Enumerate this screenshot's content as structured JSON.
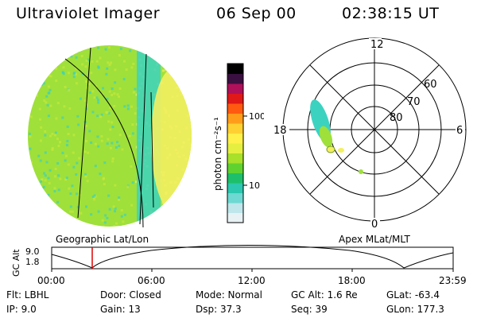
{
  "header": {
    "title": "Ultraviolet Imager",
    "date": "06 Sep 00",
    "time": "02:38:15 UT"
  },
  "colorbar": {
    "unit_label": "photon cm⁻²s⁻¹",
    "ticks": [
      "100",
      "10"
    ],
    "colors": [
      "#e8f2f4",
      "#bfe6ea",
      "#6ed8d2",
      "#2cc8b0",
      "#1ebf6a",
      "#5fd230",
      "#a8e02a",
      "#e4ef40",
      "#fff04a",
      "#ffd032",
      "#ff9d1a",
      "#ff5a10",
      "#e01818",
      "#b0105a",
      "#3a1040",
      "#000000"
    ]
  },
  "earth_panel": {
    "label": "Geographic Lat/Lon",
    "colors": {
      "cyan": "#3cd2c0",
      "green": "#9fe03a",
      "yellow": "#f2f060"
    }
  },
  "polar_panel": {
    "label": "Apex MLat/MLT",
    "mlt_labels": {
      "top": "12",
      "left": "18",
      "right": "6",
      "bottom": "0"
    },
    "lat_labels": [
      "60",
      "70",
      "80"
    ]
  },
  "altitude_plot": {
    "ylabel": "GC Alt",
    "yticks": [
      "9.0",
      "1.8"
    ],
    "xticks": [
      "00:00",
      "06:00",
      "12:00",
      "18:00",
      "23:59"
    ],
    "marker_color": "#e00000"
  },
  "info": {
    "flt": "Flt: LBHL",
    "ip": "IP:  9.0",
    "door": "Door: Closed",
    "gain": "Gain: 13",
    "mode": "Mode: Normal",
    "dsp": "Dsp:   37.3",
    "gcalt": "GC Alt: 1.6 Re",
    "seq": "Seq: 39",
    "glat": "GLat: -63.4",
    "glon": "GLon: 177.3"
  }
}
